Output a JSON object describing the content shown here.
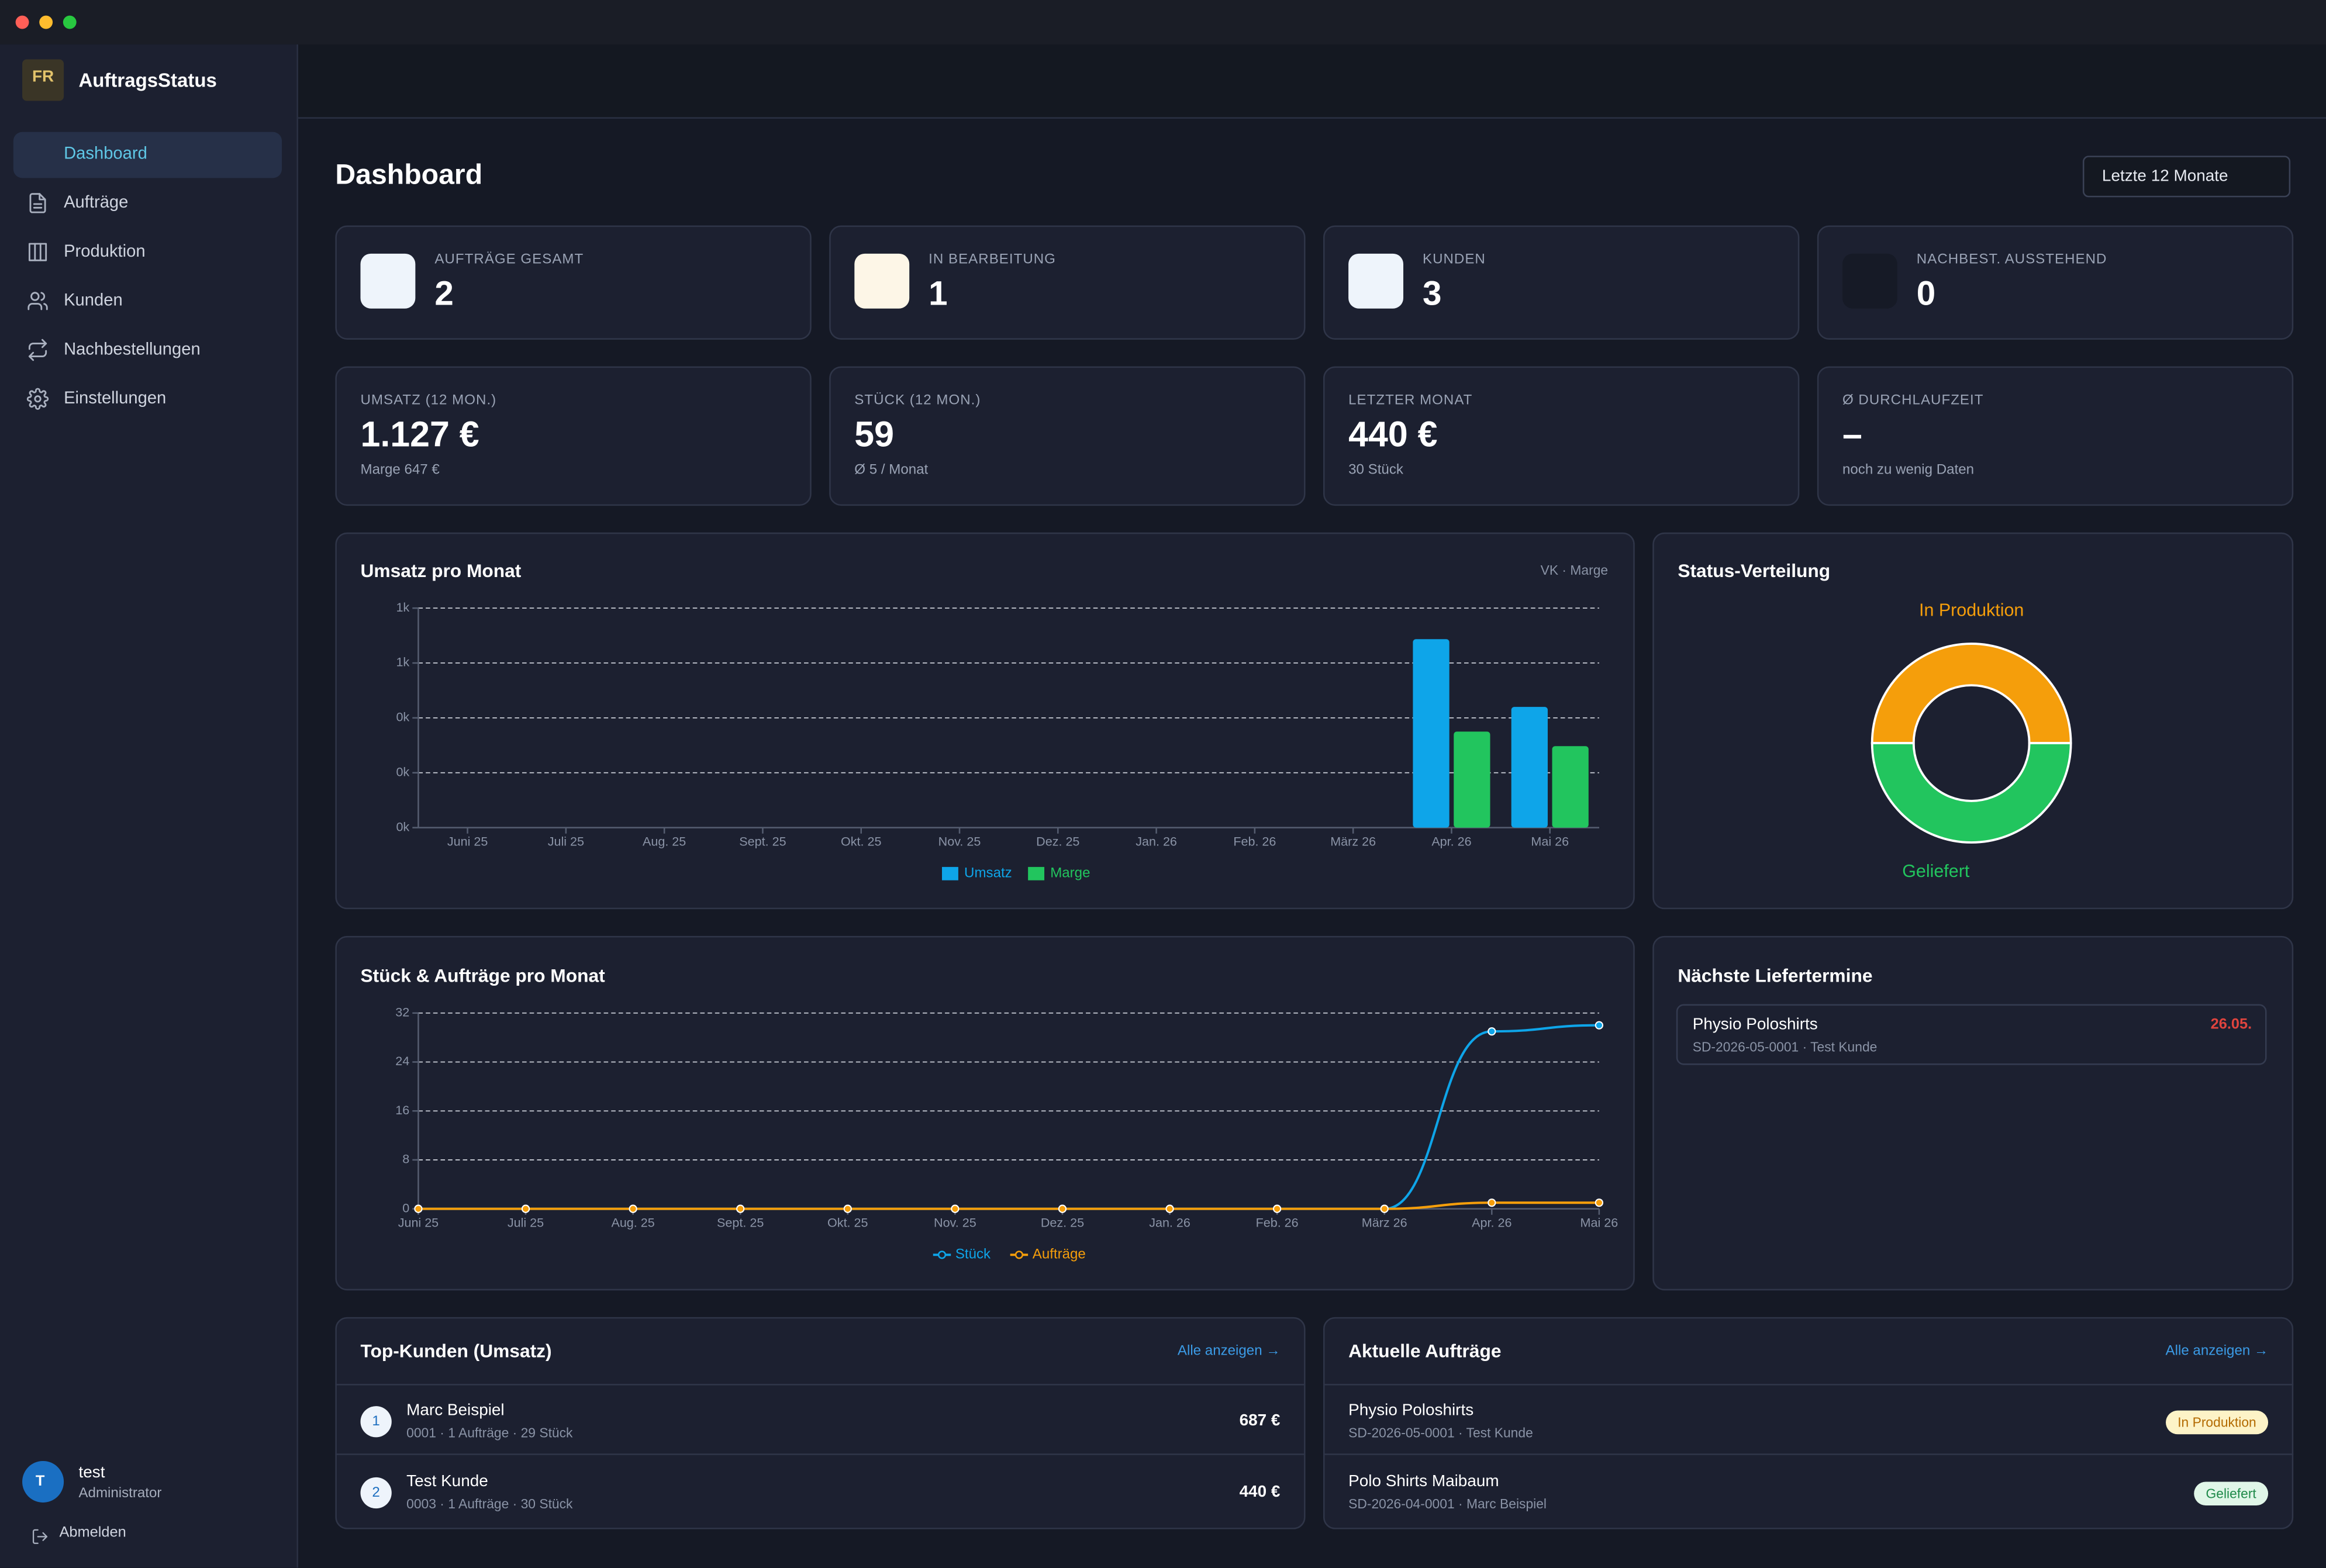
{
  "window": {
    "controls": [
      "close",
      "minimize",
      "zoom"
    ]
  },
  "sidebar": {
    "logo": "FR",
    "brand": "AuftragsStatus",
    "nav": [
      "Dashboard",
      "Aufträge",
      "Produktion",
      "Kunden",
      "Nachbestellungen",
      "Einstellungen"
    ],
    "user": {
      "initial": "T",
      "name": "test",
      "role": "Administrator"
    },
    "logout": "Abmelden"
  },
  "header": {
    "title": "Dashboard",
    "period": "Letzte 12 Monate"
  },
  "kpis": [
    {
      "label": "AUFTRÄGE GESAMT",
      "value": 2
    },
    {
      "label": "IN BEARBEITUNG",
      "value": 1
    },
    {
      "label": "KUNDEN",
      "value": 3
    },
    {
      "label": "NACHBEST. AUSSTEHEND",
      "value": 0
    }
  ],
  "stats": [
    {
      "label": "UMSATZ (12 MON.)",
      "value": "1.127 €",
      "note": "Marge 647 €"
    },
    {
      "label": "STÜCK (12 MON.)",
      "value": "59",
      "note": "Ø 5 / Monat"
    },
    {
      "label": "LETZTER MONAT",
      "value": "440 €",
      "note": "30 Stück"
    },
    {
      "label": "Ø DURCHLAUFZEIT",
      "value": "–",
      "note": "noch zu wenig Daten"
    }
  ],
  "chart_data": [
    {
      "type": "bar",
      "title": "Umsatz pro Monat",
      "subtitle": "VK · Marge",
      "categories": [
        "Juni 25",
        "Juli 25",
        "Aug. 25",
        "Sept. 25",
        "Okt. 25",
        "Nov. 25",
        "Dez. 25",
        "Jan. 26",
        "Feb. 26",
        "März 26",
        "Apr. 26",
        "Mai 26"
      ],
      "series": [
        {
          "name": "Umsatz",
          "color": "#0ea5e9",
          "values": [
            0,
            0,
            0,
            0,
            0,
            0,
            0,
            0,
            0,
            0,
            687,
            440
          ]
        },
        {
          "name": "Marge",
          "color": "#22c55e",
          "values": [
            0,
            0,
            0,
            0,
            0,
            0,
            0,
            0,
            0,
            0,
            350,
            297
          ]
        }
      ],
      "ylim": [
        0,
        800
      ],
      "yticks": [
        {
          "value": 0,
          "label": "0k"
        },
        {
          "value": 200,
          "label": "0k"
        },
        {
          "value": 400,
          "label": "0k"
        },
        {
          "value": 600,
          "label": "1k"
        },
        {
          "value": 800,
          "label": "1k"
        }
      ],
      "grid": true,
      "legend": "bottom"
    },
    {
      "type": "line",
      "title": "Stück & Aufträge pro Monat",
      "categories": [
        "Juni 25",
        "Juli 25",
        "Aug. 25",
        "Sept. 25",
        "Okt. 25",
        "Nov. 25",
        "Dez. 25",
        "Jan. 26",
        "Feb. 26",
        "März 26",
        "Apr. 26",
        "Mai 26"
      ],
      "series": [
        {
          "name": "Stück",
          "color": "#0ea5e9",
          "values": [
            0,
            0,
            0,
            0,
            0,
            0,
            0,
            0,
            0,
            0,
            29,
            30
          ]
        },
        {
          "name": "Aufträge",
          "color": "#f59e0b",
          "values": [
            0,
            0,
            0,
            0,
            0,
            0,
            0,
            0,
            0,
            0,
            1,
            1
          ]
        }
      ],
      "ylim": [
        0,
        32
      ],
      "yticks": [
        0,
        8,
        16,
        24,
        32
      ],
      "grid": true,
      "legend": "bottom"
    },
    {
      "type": "pie",
      "title": "Status-Verteilung",
      "categories": [
        "In Produktion",
        "Geliefert"
      ],
      "values": [
        1,
        1
      ],
      "colors": [
        "#f59e0b",
        "#22c55e"
      ],
      "donut": true
    }
  ],
  "deliveries": {
    "title": "Nächste Liefertermine",
    "items": [
      {
        "name": "Physio Poloshirts",
        "meta": "SD-2026-05-0001 · Test Kunde",
        "date": "26.05."
      }
    ]
  },
  "top_customers": {
    "title": "Top-Kunden (Umsatz)",
    "link": "Alle anzeigen →",
    "rows": [
      {
        "rank": 1,
        "name": "Marc Beispiel",
        "meta": "0001 · 1 Aufträge · 29 Stück",
        "amount": "687 €"
      },
      {
        "rank": 2,
        "name": "Test Kunde",
        "meta": "0003 · 1 Aufträge · 30 Stück",
        "amount": "440 €"
      }
    ]
  },
  "recent_orders": {
    "title": "Aktuelle Aufträge",
    "link": "Alle anzeigen →",
    "rows": [
      {
        "name": "Physio Poloshirts",
        "meta": "SD-2026-05-0001 · Test Kunde",
        "status": "In Produktion"
      },
      {
        "name": "Polo Shirts Maibaum",
        "meta": "SD-2026-04-0001 · Marc Beispiel",
        "status": "Geliefert"
      }
    ]
  }
}
